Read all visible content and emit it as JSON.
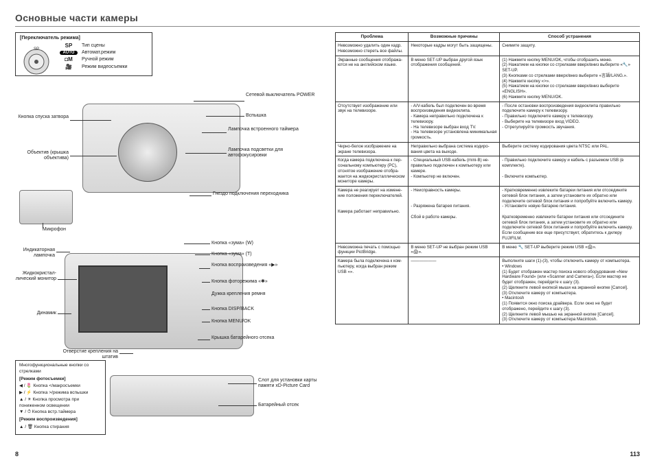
{
  "title": "Основные части камеры",
  "page_left": "8",
  "page_right": "113",
  "mode_box": {
    "header": "[Переключатель режима]",
    "rows": [
      {
        "sym": "SP",
        "label": "Тип сцены"
      },
      {
        "sym": "AUTO",
        "label": "Автомат.режим"
      },
      {
        "sym": "◘M",
        "label": "Ручной режим"
      },
      {
        "sym": "🎥",
        "label": "Режим видеосъемки"
      }
    ]
  },
  "labels_left": [
    "Кнопка спуска затвора",
    "Объектив (крышка объектива)",
    "Микрофон",
    "Индикаторная лампочка",
    "Жидкокристал­лический монитор",
    "Динамик",
    "Отверстие крепле­ния на штатив"
  ],
  "labels_right_top": [
    "Сетевой выключатель POWER",
    "Вспышка",
    "Лампочка встроенного таймера",
    "Лампочка подсветки для автофокусировки",
    "Гнездо подключения переходника"
  ],
  "labels_right_mid": [
    "Кнопка «зума» (W)",
    "Кнопка «зума» (T)",
    "Кнопка воспроизведения «▶»",
    "Кнопка фоторежима «✱»",
    "Дужка крепления ремня",
    "Кнопка DISP/BACK",
    "Кнопка MENU/OK",
    "Крышка батарейного отсека"
  ],
  "labels_right_bot": [
    "Слот для установки карты памяти xD-Picture Card",
    "Батарейный отсек"
  ],
  "legend": {
    "title": "Многофункциональные кнопки со стрелками",
    "h1": "[Режим фотосъемки]",
    "r": [
      "◀ / 🌷  Кнопка </макросъемки",
      "▶ / ⚡  Кнопка >/режима вспышки",
      "▲ / ☀  Кнопка просмотра при пониженном освещении",
      "▼ / ⏱  Кнопка встр.таймера"
    ],
    "h2": "[Режим воспроизведения]",
    "r2": [
      "▲ / 🗑  Кнопка стирания"
    ]
  },
  "table": {
    "headers": [
      "Проблема",
      "Возможные причины",
      "Способ устранения"
    ],
    "rows": [
      [
        "Невозможно удалить один кадр. Невозможно стереть все фай­лы.",
        "Некоторые кадры могут быть защище­ны.",
        "Снимите защиту."
      ],
      [
        "Экранные сообщения отобража­ются не на английском языке.",
        "В меню SET-UP выбран другой язык отображения сообщений.",
        "(1) Нажмите кнопку MENU/OK, чтобы отобразить меню.\n(2) Нажатием на кнопки со стрелками вверх/вниз выберите «🔧» SET-UP.\n(3) Кнопками со стрелками вверх/вниз выберите «言語/LANG.».\n(4) Нажмите кнопку «>».\n(5) Нажатием на кнопки со стрелками вверх/вниз выберите «ENGLISH».\n(6) Нажмите кнопку MENU/OK."
      ],
      [
        "Отсутствует изображение или звук на телевизоре.",
        "- A/V-кабель был подключен во время воспроизведения видеоклипа.\n- Камера неправильно подключена к телевизору.\n- На телевизоре выбран вход TV.\n- На телевизоре установлена минималь­ная громкость.",
        "- После остановки воспроизведения видеоклипа правильно подключите камеру к телевизору.\n- Правильно подключите камеру к те­левизору.\n- Выберите на телевизоре вход VIDEO.\n- Отрегулируйте громкость звучания."
      ],
      [
        "Черно-белое изображение на экране телевизора.",
        "Неправильно выбрана система кодиро­вания цвета на выходе.",
        "Выберите систему кодирования цвета NTSC или PAL."
      ],
      [
        "Когда камера подключена к пер­сональному компьютеру (PC), отснятое изображение отобра­жается на жидкокристалличес­ком мониторе камеры.",
        "- Специальный USB-кабель (mini-B) не­правильно подключен к компьютеру или камере.\n- Компьютер не включен.",
        "- Правильно подключите камеру и ка­бель с разъемом USB (в комплекте).\n\n- Включите компьютер."
      ],
      [
        "Камера не реагирует на измене­ние положения переключателей.\n\n\nКамера работает неправильно.",
        "- Неисправность камеры.\n\n\n- Разряжена батарея питания.\n\nСбой в работе камеры.",
        "- Кратковременно извлеките батареи питания или отсоедините сетевой блок питания, а затем установите их обрат­но или подключите сетевой блок пита­ния и попробуйте включить камеру.\n- Установите новую батарею питания.\n\nКратковременно извлеките батареи питания или отсоедините сетевой блок питания, а затем установите их обрат­но или подключите сетевой блок пита­ния и попробуйте включить камеру. Если сообщение все еще присутству­ет, обратитесь к дилеру FUJIFILM."
      ],
      [
        "Невозможна печать с помощью функции PictBridge.",
        "В меню SET-UP не выбран режим USB «🖨».",
        "В меню 🔧 SET-UP выберите режим USB «🖨»."
      ],
      [
        "Камера была подключена к ком­пьютеру, когда выбран режим USB «».",
        "——————",
        "Выполните шаги (1)-(3), чтобы отклю­чить камеру от компьютера.\n• Windows\n(1) Будет отображен мастер поиска нового оборудования «New Hardware Found» (или «Scanner and Camera»). Если мастер не будет отображен, пе­рейдите к шагу (3).\n(2) Щелкните левой кнопкой мыши на экранной кнопке [Cancel].\n(3) Отключите камеру от компьютера.\n• Macintosh\n(1) Появится окно поиска драйвера. Если окно не будет отображено, пере­йдите к шагу (3).\n(2) Щелкните левой мышью на экран­ной кнопке [Cancel].\n(3) Отключите камеру от компьютера Macintosh."
      ]
    ]
  }
}
